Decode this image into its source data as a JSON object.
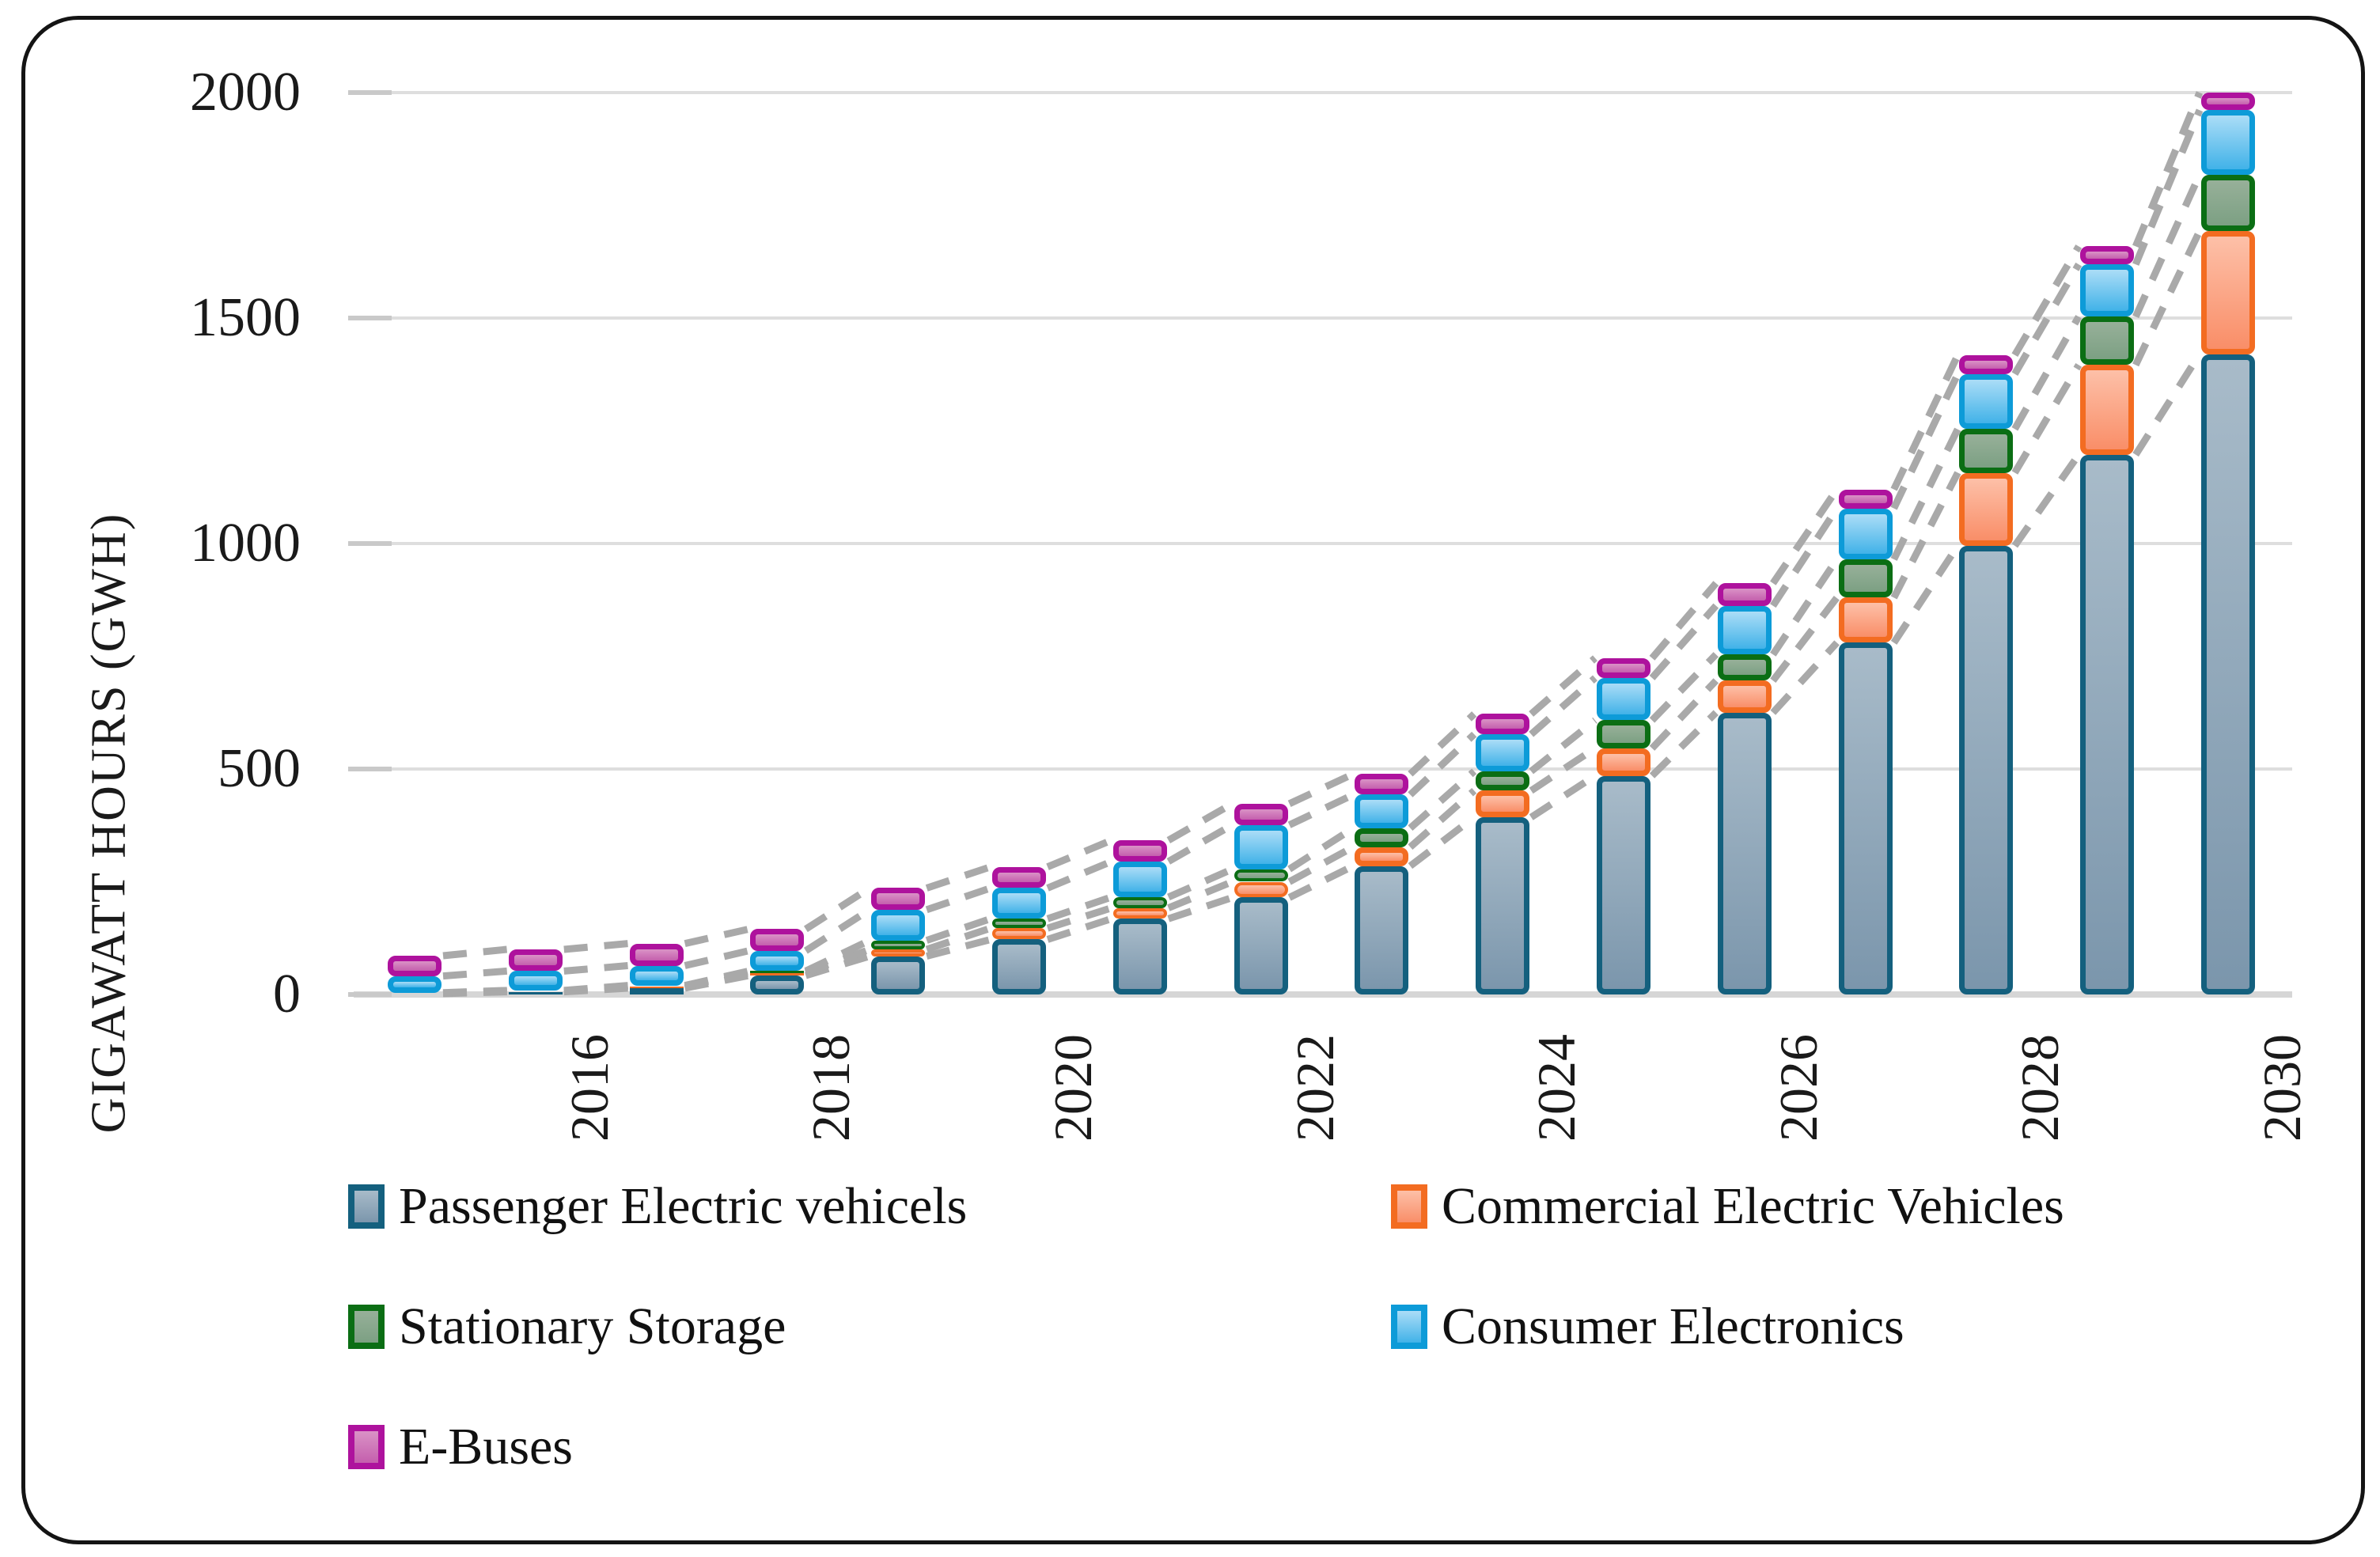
{
  "figure": {
    "background": "#ffffff",
    "frame_color": "#141414",
    "gridline_color": "#dedede",
    "baseline_color": "#d6d6d6",
    "tick_color": "#c9c9c9",
    "connector_color": "#a9a9a9",
    "text_color": "#1a1a1a"
  },
  "y_axis": {
    "title": "GIGAWATT HOURS (GWH)",
    "tick_labels": [
      "0",
      "500",
      "1000",
      "1500",
      "2000"
    ],
    "tick_values": [
      0,
      500,
      1000,
      1500,
      2000
    ]
  },
  "x_axis": {
    "tick_labels": [
      "2016",
      "2018",
      "2020",
      "2022",
      "2024",
      "2026",
      "2028",
      "2030"
    ]
  },
  "legend": {
    "columns": [
      [
        {
          "key": "passenger",
          "label": "Passenger Electric vehicels"
        },
        {
          "key": "storage",
          "label": "Stationary Storage"
        },
        {
          "key": "ebus",
          "label": "E-Buses"
        }
      ],
      [
        {
          "key": "commercial",
          "label": "Commercial Electric Vehicles"
        },
        {
          "key": "consumer",
          "label": "Consumer Electronics"
        }
      ]
    ]
  },
  "chart_data": {
    "type": "bar",
    "subtype": "stacked-vertical-with-dashed-connectors",
    "title": "",
    "xlabel": "",
    "ylabel": "GIGAWATT HOURS (GWH)",
    "ylim": [
      0,
      2000
    ],
    "grid": true,
    "legend_position": "bottom-two-columns",
    "categories": [
      2015,
      2016,
      2017,
      2018,
      2019,
      2020,
      2021,
      2022,
      2023,
      2024,
      2025,
      2026,
      2027,
      2028,
      2029,
      2030
    ],
    "series": [
      {
        "name": "Passenger Electric vehicels",
        "key": "passenger",
        "border_color": "#14607e",
        "fill_top": "#a8bbc9",
        "fill_bottom": "#7b96ac",
        "values": [
          2,
          6,
          14,
          42,
          85,
          122,
          168,
          215,
          285,
          393,
          485,
          625,
          780,
          995,
          1197,
          1420
        ]
      },
      {
        "name": "Commercial Electric Vehicles",
        "key": "commercial",
        "border_color": "#f36c21",
        "fill_top": "#fdc0a8",
        "fill_bottom": "#f98e68",
        "values": [
          1,
          1,
          4,
          6,
          15,
          25,
          24,
          35,
          42,
          59,
          61,
          71,
          100,
          162,
          199,
          273
        ]
      },
      {
        "name": "Stationary Storage",
        "key": "storage",
        "border_color": "#0b6e14",
        "fill_top": "#97b099",
        "fill_bottom": "#7ca083",
        "values": [
          1,
          2,
          2,
          4,
          20,
          21,
          24,
          28,
          42,
          43,
          62,
          58,
          85,
          97,
          107,
          125
        ]
      },
      {
        "name": "Consumer Electronics",
        "key": "consumer",
        "border_color": "#0d9bd8",
        "fill_top": "#abddf7",
        "fill_bottom": "#41b2e8",
        "values": [
          37,
          43,
          44,
          45,
          68,
          68,
          79,
          98,
          74,
          82,
          94,
          108,
          113,
          122,
          116,
          143
        ]
      },
      {
        "name": "E-Buses",
        "key": "ebus",
        "border_color": "#ae129d",
        "fill_top": "#da92c6",
        "fill_bottom": "#c45fad",
        "values": [
          45,
          48,
          49,
          48,
          48,
          47,
          47,
          47,
          46,
          45,
          44,
          50,
          42,
          42,
          40,
          39
        ]
      }
    ],
    "connectors": {
      "style": "dashed",
      "color": "#a9a9a9",
      "connect": "cumulative-boundaries-between-adjacent-bars"
    }
  }
}
